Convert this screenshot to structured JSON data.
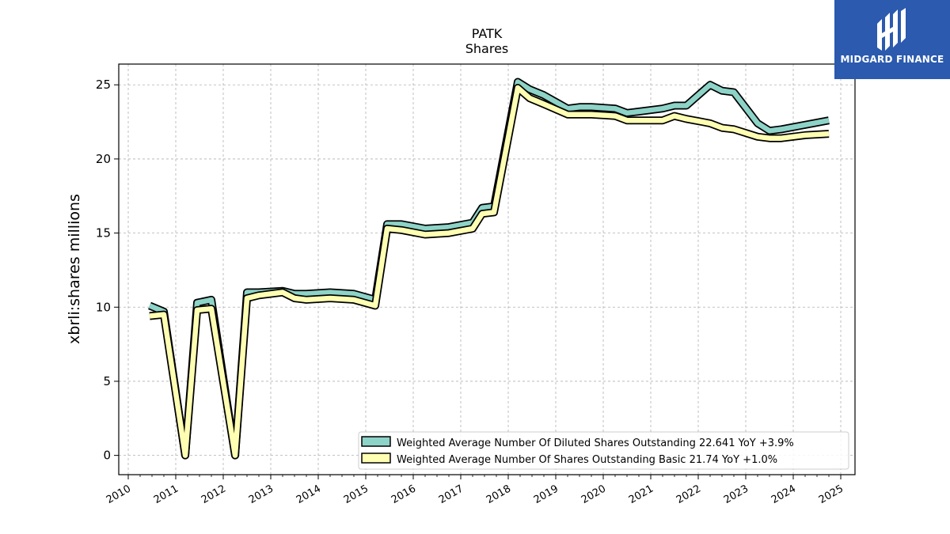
{
  "chart_data": {
    "type": "line",
    "title": "PATK",
    "subtitle": "Shares",
    "ylabel": "xbrli:shares millions",
    "xlabel": "",
    "xlim": [
      2009.8,
      2025.3
    ],
    "ylim": [
      -1.3,
      26.4
    ],
    "grid": true,
    "legend_position": "lower-right",
    "x_ticks": [
      "2010",
      "2011",
      "2012",
      "2013",
      "2014",
      "2015",
      "2016",
      "2017",
      "2018",
      "2019",
      "2020",
      "2021",
      "2022",
      "2023",
      "2024",
      "2025"
    ],
    "y_ticks": [
      "0",
      "5",
      "10",
      "15",
      "20",
      "25"
    ],
    "series": [
      {
        "name": "Weighted Average Number Of Diluted Shares Outstanding  22.641 YoY +3.9%",
        "color": "#8dd3c7",
        "x": [
          2010.45,
          2010.75,
          2011.2,
          2011.45,
          2011.75,
          2012.25,
          2012.5,
          2012.75,
          2013.25,
          2013.5,
          2013.75,
          2014.25,
          2014.75,
          2015.2,
          2015.45,
          2015.75,
          2016.25,
          2016.75,
          2017.25,
          2017.45,
          2017.7,
          2018.2,
          2018.45,
          2018.75,
          2019.25,
          2019.5,
          2019.75,
          2020.25,
          2020.5,
          2020.75,
          2021.25,
          2021.5,
          2021.75,
          2022.25,
          2022.5,
          2022.75,
          2023.25,
          2023.5,
          2023.75,
          2024.25,
          2024.75
        ],
        "y": [
          10.1,
          9.7,
          0.0,
          10.3,
          10.5,
          0.0,
          11.0,
          11.0,
          11.1,
          10.9,
          10.9,
          11.0,
          10.9,
          10.5,
          15.6,
          15.6,
          15.3,
          15.4,
          15.7,
          16.7,
          16.8,
          25.2,
          24.7,
          24.3,
          23.4,
          23.5,
          23.5,
          23.4,
          23.1,
          23.2,
          23.4,
          23.6,
          23.6,
          25.0,
          24.6,
          24.5,
          22.4,
          21.9,
          22.0,
          22.3,
          22.6
        ]
      },
      {
        "name": "Weighted Average Number Of Shares Outstanding Basic  21.74 YoY +1.0%",
        "color": "#ffffb3",
        "x": [
          2010.45,
          2010.75,
          2011.2,
          2011.45,
          2011.75,
          2012.25,
          2012.5,
          2012.75,
          2013.25,
          2013.5,
          2013.75,
          2014.25,
          2014.75,
          2015.2,
          2015.45,
          2015.75,
          2016.25,
          2016.75,
          2017.25,
          2017.45,
          2017.7,
          2018.2,
          2018.45,
          2018.75,
          2019.25,
          2019.5,
          2019.75,
          2020.25,
          2020.5,
          2020.75,
          2021.25,
          2021.5,
          2021.75,
          2022.25,
          2022.5,
          2022.75,
          2023.25,
          2023.5,
          2023.75,
          2024.25,
          2024.75
        ],
        "y": [
          9.4,
          9.5,
          0.0,
          9.8,
          9.9,
          0.0,
          10.6,
          10.8,
          11.0,
          10.6,
          10.5,
          10.6,
          10.5,
          10.1,
          15.3,
          15.2,
          14.9,
          15.0,
          15.3,
          16.3,
          16.4,
          24.8,
          24.1,
          23.7,
          23.0,
          23.0,
          23.0,
          22.9,
          22.6,
          22.6,
          22.6,
          22.9,
          22.7,
          22.4,
          22.1,
          22.0,
          21.5,
          21.4,
          21.4,
          21.6,
          21.7
        ]
      }
    ]
  },
  "logo": {
    "text": "MIDGARD FINANCE",
    "background": "#2b5aae"
  }
}
